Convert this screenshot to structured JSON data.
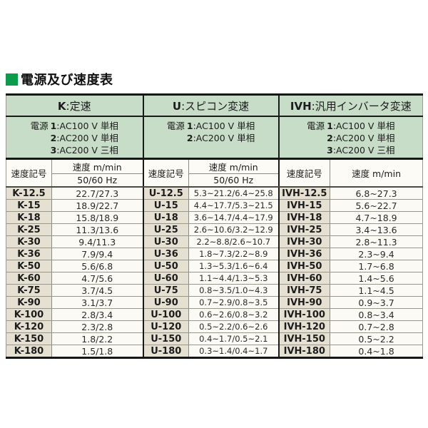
{
  "title": "電源及び速度表",
  "colors": {
    "bullet_green": "#0a9b4b",
    "header_green": "#c7ddc8",
    "code_beige": "#e5e0d1",
    "value_bg": "#fbfaf4",
    "border_dark": "#161616"
  },
  "table": {
    "sections": [
      {
        "header": {
          "code": "K",
          "sep": ":",
          "label": "定速"
        },
        "power": {
          "label": "電源",
          "options": [
            {
              "num": "1",
              "text": ":AC100 V 単相"
            },
            {
              "num": "2",
              "text": ":AC200 V 単相"
            },
            {
              "num": "3",
              "text": ":AC200 V 三相"
            }
          ]
        },
        "columns": {
          "code": "速度記号",
          "speed": "速度 m/min",
          "speed_sub": "50/60 Hz"
        },
        "rows": [
          {
            "code": "K-12.5",
            "value": "22.7/27.3"
          },
          {
            "code": "K-15",
            "value": "18.9/22.7"
          },
          {
            "code": "K-18",
            "value": "15.8/18.9"
          },
          {
            "code": "K-25",
            "value": "11.3/13.6"
          },
          {
            "code": "K-30",
            "value": "9.4/11.3"
          },
          {
            "code": "K-36",
            "value": "7.9/9.4"
          },
          {
            "code": "K-50",
            "value": "5.6/6.8"
          },
          {
            "code": "K-60",
            "value": "4.7/5.6"
          },
          {
            "code": "K-75",
            "value": "3.7/4.5"
          },
          {
            "code": "K-90",
            "value": "3.1/3.7"
          },
          {
            "code": "K-100",
            "value": "2.8/3.4"
          },
          {
            "code": "K-120",
            "value": "2.3/2.8"
          },
          {
            "code": "K-150",
            "value": "1.8/2.2"
          },
          {
            "code": "K-180",
            "value": "1.5/1.8"
          }
        ]
      },
      {
        "header": {
          "code": "U",
          "sep": ":",
          "label": "スピコン変速"
        },
        "power": {
          "label": "電源",
          "options": [
            {
              "num": "1",
              "text": ":AC100 V 単相"
            },
            {
              "num": "2",
              "text": ":AC200 V 単相"
            }
          ]
        },
        "columns": {
          "code": "速度記号",
          "speed": "速度 m/min",
          "speed_sub": "50/60 Hz"
        },
        "rows": [
          {
            "code": "U-12.5",
            "value": "5.3~21.2/6.4~25.8"
          },
          {
            "code": "U-15",
            "value": "4.4~17.7/5.3~21.5"
          },
          {
            "code": "U-18",
            "value": "3.6~14.7/4.4~17.9"
          },
          {
            "code": "U-25",
            "value": "2.6~10.6/3.2~12.9"
          },
          {
            "code": "U-30",
            "value": "2.2~8.8/2.6~10.7"
          },
          {
            "code": "U-36",
            "value": "1.8~7.3/2.2~8.9"
          },
          {
            "code": "U-50",
            "value": "1.3~5.3/1.6~6.4"
          },
          {
            "code": "U-60",
            "value": "1.1~4.4/1.3~5.3"
          },
          {
            "code": "U-75",
            "value": "0.8~3.5/1.0~4.3"
          },
          {
            "code": "U-90",
            "value": "0.7~2.9/0.8~3.5"
          },
          {
            "code": "U-100",
            "value": "0.6~2.6/0.8~3.2"
          },
          {
            "code": "U-120",
            "value": "0.5~2.2/0.6~2.6"
          },
          {
            "code": "U-150",
            "value": "0.4~1.7/0.5~2.1"
          },
          {
            "code": "U-180",
            "value": "0.3~1.4/0.4~1.7"
          }
        ]
      },
      {
        "header": {
          "code": "IVH",
          "sep": ":",
          "label": "汎用インバータ変速"
        },
        "power": {
          "label": "電源",
          "options": [
            {
              "num": "1",
              "text": ":AC100 V 単相"
            },
            {
              "num": "2",
              "text": ":AC200 V 単相"
            },
            {
              "num": "3",
              "text": ":AC200 V 三相"
            }
          ]
        },
        "columns": {
          "code": "速度記号",
          "speed": "速度 m/min"
        },
        "rows": [
          {
            "code": "IVH-12.5",
            "value": "6.8~27.3"
          },
          {
            "code": "IVH-15",
            "value": "5.6~22.7"
          },
          {
            "code": "IVH-18",
            "value": "4.7~18.9"
          },
          {
            "code": "IVH-25",
            "value": "3.4~13.6"
          },
          {
            "code": "IVH-30",
            "value": "2.8~11.3"
          },
          {
            "code": "IVH-36",
            "value": "2.3~9.4"
          },
          {
            "code": "IVH-50",
            "value": "1.7~6.8"
          },
          {
            "code": "IVH-60",
            "value": "1.4~5.6"
          },
          {
            "code": "IVH-75",
            "value": "1.1~4.5"
          },
          {
            "code": "IVH-90",
            "value": "0.9~3.7"
          },
          {
            "code": "IVH-100",
            "value": "0.8~3.4"
          },
          {
            "code": "IVH-120",
            "value": "0.7~2.8"
          },
          {
            "code": "IVH-150",
            "value": "0.5~2.2"
          },
          {
            "code": "IVH-180",
            "value": "0.4~1.8"
          }
        ]
      }
    ]
  }
}
